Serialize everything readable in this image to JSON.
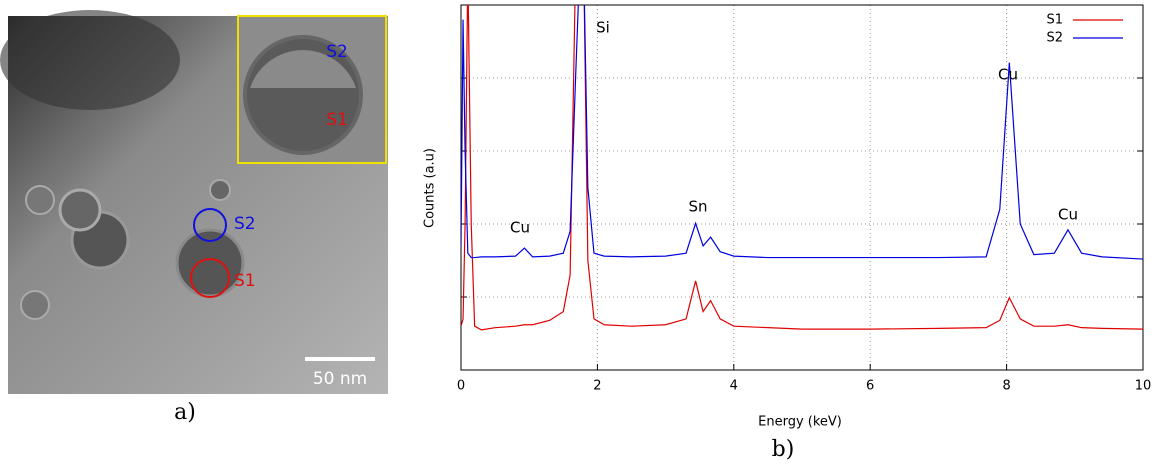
{
  "panel_a": {
    "inset_labels": [
      "S2",
      "S1"
    ],
    "region_labels": [
      "S2",
      "S1"
    ],
    "scale_bar": "50 nm",
    "caption": "a)"
  },
  "chart_data": {
    "type": "line",
    "caption": "b)",
    "xlabel": "Energy (keV)",
    "ylabel": "Counts (a.u)",
    "xlim": [
      0,
      10
    ],
    "xticks": [
      0,
      2,
      4,
      6,
      8,
      10
    ],
    "ylim": [
      0,
      5
    ],
    "yticks": [
      1,
      2,
      3,
      4
    ],
    "grid": true,
    "legend": "upper right",
    "annotations": [
      "Cu",
      "Si",
      "Sn",
      "Cu",
      "Cu"
    ],
    "x": [
      0,
      0.03,
      0.06,
      0.1,
      0.15,
      0.2,
      0.3,
      0.5,
      0.8,
      0.93,
      1.05,
      1.3,
      1.5,
      1.6,
      1.68,
      1.74,
      1.8,
      1.86,
      1.95,
      2.1,
      2.5,
      3.0,
      3.3,
      3.44,
      3.55,
      3.66,
      3.8,
      4.0,
      4.5,
      5,
      6,
      7,
      7.7,
      7.9,
      8.04,
      8.2,
      8.4,
      8.7,
      8.9,
      9.1,
      9.4,
      10
    ],
    "series": [
      {
        "name": "S1",
        "color": "#e00000",
        "values": [
          0.6,
          0.7,
          2,
          5.5,
          2,
          0.6,
          0.55,
          0.58,
          0.6,
          0.62,
          0.62,
          0.68,
          0.8,
          1.3,
          5.5,
          5.5,
          5.5,
          1.5,
          0.7,
          0.62,
          0.6,
          0.62,
          0.7,
          1.22,
          0.8,
          0.95,
          0.7,
          0.6,
          0.58,
          0.56,
          0.56,
          0.57,
          0.58,
          0.68,
          0.99,
          0.7,
          0.6,
          0.6,
          0.62,
          0.58,
          0.57,
          0.56
        ]
      },
      {
        "name": "S2",
        "color": "#0000e0",
        "values": [
          1.7,
          4.8,
          3.0,
          1.6,
          1.54,
          1.54,
          1.55,
          1.55,
          1.56,
          1.67,
          1.55,
          1.56,
          1.6,
          1.9,
          4,
          5.5,
          5.5,
          2.5,
          1.6,
          1.56,
          1.55,
          1.56,
          1.6,
          2.01,
          1.7,
          1.82,
          1.62,
          1.56,
          1.54,
          1.54,
          1.54,
          1.54,
          1.55,
          2.2,
          4.21,
          2.0,
          1.58,
          1.6,
          1.92,
          1.6,
          1.55,
          1.52
        ]
      }
    ]
  }
}
